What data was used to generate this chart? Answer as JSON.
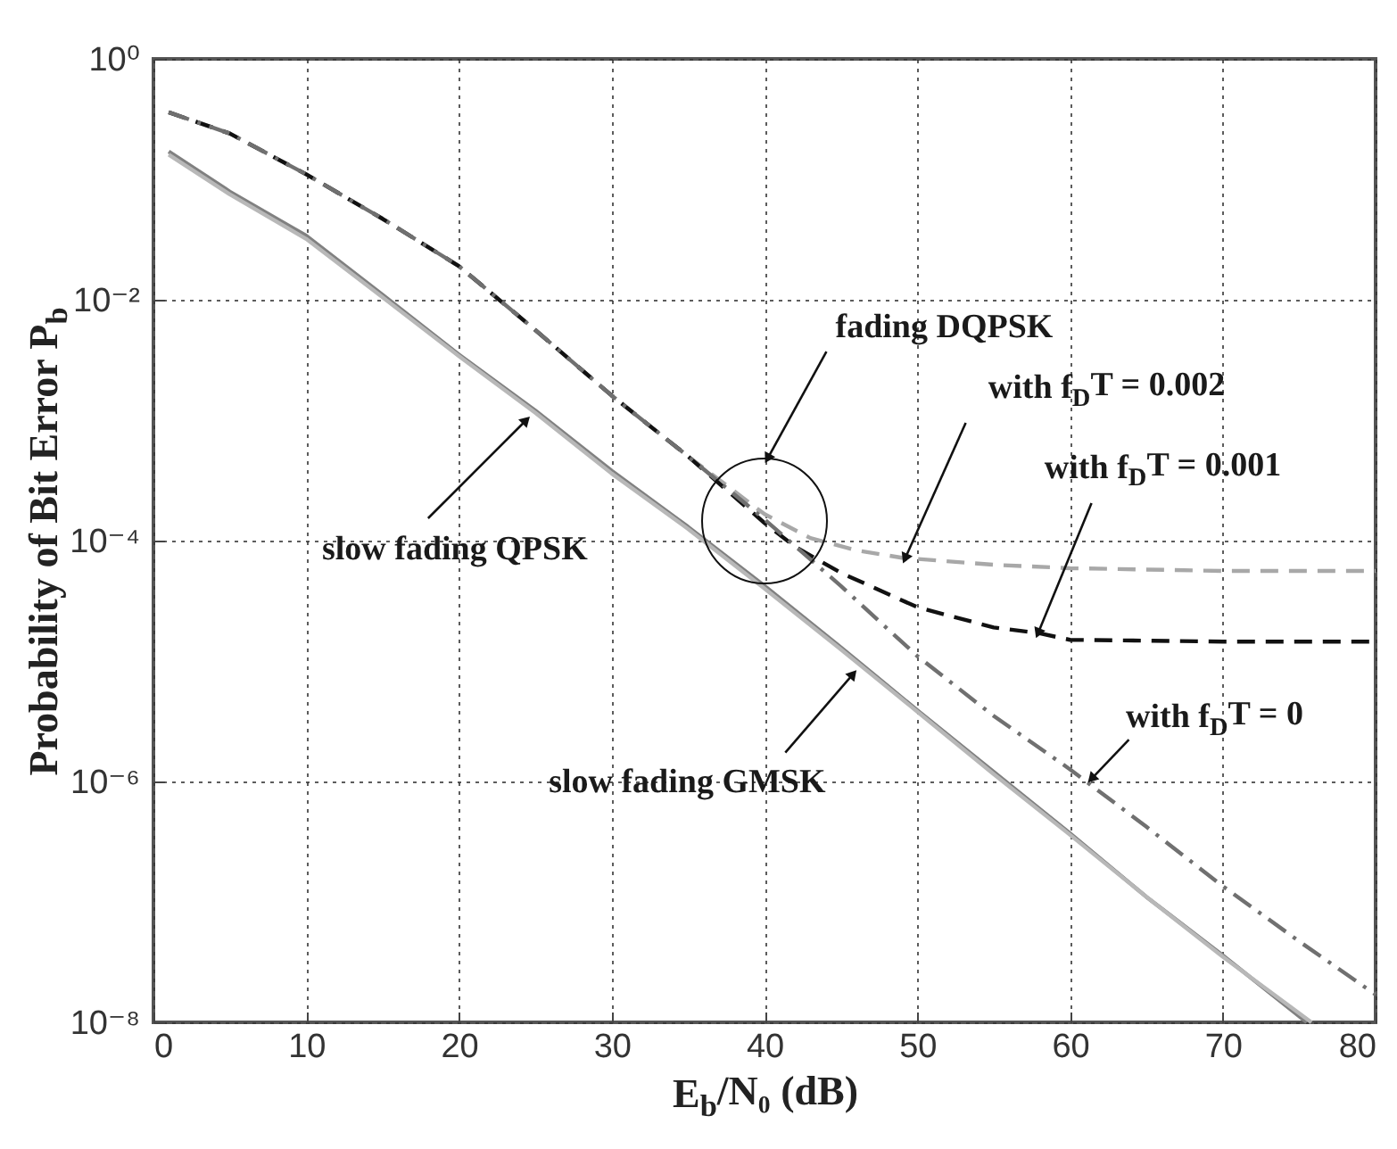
{
  "chart_data": {
    "type": "line",
    "xlabel": "E$_{b}$/N₀ (dB)",
    "ylabel": "Probability of Bit Error P$_{b}$",
    "log": "y",
    "grid": true,
    "xlim": [
      0,
      80
    ],
    "xticks": [
      0,
      10,
      20,
      30,
      40,
      50,
      60,
      70,
      80
    ],
    "ylim": [
      1e-08,
      1
    ],
    "yticks": [
      {
        "value": 1e-08,
        "label": "10⁻⁸"
      },
      {
        "value": 1e-06,
        "label": "10⁻⁶"
      },
      {
        "value": 0.0001,
        "label": "10⁻⁴"
      },
      {
        "value": 0.01,
        "label": "10⁻²"
      },
      {
        "value": 1,
        "label": "10⁰"
      }
    ],
    "series": [
      {
        "color": "#808080",
        "line_style": "solid",
        "x": [
          1,
          5,
          10,
          15,
          20,
          25,
          30,
          35,
          40,
          45,
          50,
          55,
          60,
          65,
          70,
          75.5
        ],
        "values": [
          0.17,
          0.079,
          0.034,
          0.011,
          0.0035,
          0.0012,
          0.00038,
          0.00013,
          4.2e-05,
          1.3e-05,
          3.9e-06,
          1.2e-06,
          3.7e-07,
          1.1e-07,
          3.6e-08,
          1e-08
        ]
      },
      {
        "color": "#b8b8b8",
        "line_style": "solid",
        "x": [
          1,
          5,
          10,
          15,
          20,
          25,
          30,
          35,
          40,
          45,
          50,
          55,
          60,
          65,
          70,
          75.8
        ],
        "values": [
          0.16,
          0.075,
          0.032,
          0.0105,
          0.0034,
          0.00115,
          0.00036,
          0.000125,
          4e-05,
          1.25e-05,
          3.8e-06,
          1.15e-06,
          3.6e-07,
          1.1e-07,
          3.5e-08,
          1e-08
        ]
      },
      {
        "color": "#a8a8a8",
        "line_style": "dashed",
        "x": [
          1,
          5,
          10,
          15,
          20,
          25,
          30,
          35,
          40,
          43,
          46,
          49,
          55,
          60,
          70,
          80
        ],
        "values": [
          0.36,
          0.24,
          0.11,
          0.047,
          0.019,
          0.0056,
          0.0016,
          0.0005,
          0.000166,
          0.000105,
          8.3e-05,
          7.2e-05,
          6.3e-05,
          5.9e-05,
          5.6e-05,
          5.6e-05
        ]
      },
      {
        "color": "#111111",
        "line_style": "dashed",
        "x": [
          1,
          5,
          10,
          15,
          20,
          25,
          30,
          35,
          40,
          42,
          45,
          50,
          55,
          58,
          60,
          70,
          80
        ],
        "values": [
          0.36,
          0.24,
          0.11,
          0.047,
          0.019,
          0.0056,
          0.0016,
          0.0005,
          0.00014,
          8.9e-05,
          5.4e-05,
          2.8e-05,
          1.9e-05,
          1.7e-05,
          1.5e-05,
          1.45e-05,
          1.45e-05
        ]
      },
      {
        "color": "#707070",
        "line_style": "dashdot",
        "x": [
          1,
          5,
          10,
          15,
          20,
          25,
          30,
          35,
          40,
          45,
          50,
          55,
          60,
          65,
          70,
          75,
          80
        ],
        "values": [
          0.36,
          0.24,
          0.11,
          0.047,
          0.019,
          0.0056,
          0.0016,
          0.0005,
          0.00015,
          4.2e-05,
          1.1e-05,
          3.5e-06,
          1.26e-06,
          4.2e-07,
          1.35e-07,
          4.7e-08,
          1.7e-08
        ]
      }
    ],
    "annotations": [
      {
        "text": "slow fading QPSK",
        "x": 24.4,
        "y": 0.001
      },
      {
        "text": "slow fading GMSK",
        "x": 45.8,
        "y": 7.8e-06
      },
      {
        "text": "fading DQPSK",
        "x": 40.2,
        "y": 0.00048
      },
      {
        "text": "with f$_{D}$T = 0.002",
        "x": 49.2,
        "y": 7.1e-05
      },
      {
        "text": "with f$_{D}$T = 0.001",
        "x": 57.9,
        "y": 1.7e-05
      },
      {
        "text": "with f$_{D}$T = 0",
        "x": 61.4,
        "y": 1.05e-06
      }
    ]
  }
}
